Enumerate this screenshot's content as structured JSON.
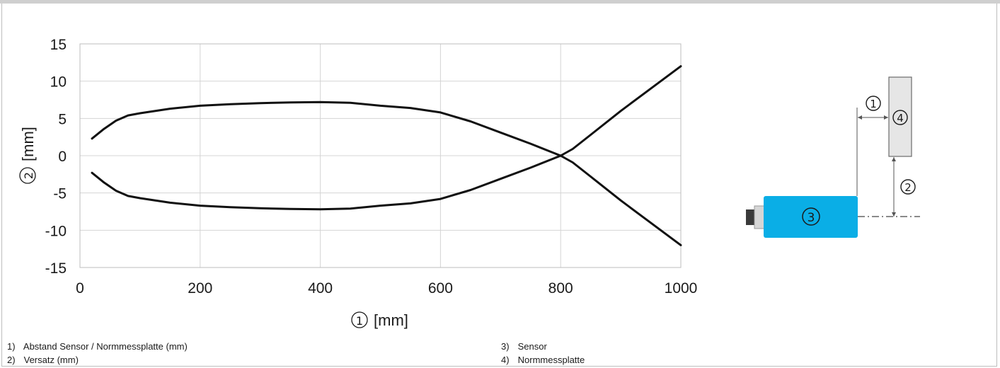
{
  "chart_data": {
    "type": "line",
    "title": "",
    "xlabel_marker": "①",
    "xlabel_unit": "[mm]",
    "ylabel_marker": "②",
    "ylabel_unit": "[mm]",
    "xlim": [
      0,
      1000
    ],
    "ylim": [
      -15,
      15
    ],
    "x_ticks": [
      0,
      200,
      400,
      600,
      800,
      1000
    ],
    "y_ticks": [
      15,
      10,
      5,
      0,
      -5,
      -10,
      -15
    ],
    "grid": true,
    "series": [
      {
        "x": [
          20,
          40,
          60,
          80,
          100,
          150,
          200,
          250,
          300,
          350,
          400,
          450,
          500,
          550,
          600,
          650,
          700,
          750,
          800,
          820,
          850,
          900,
          950,
          1000
        ],
        "y": [
          2.3,
          3.6,
          4.7,
          5.4,
          5.7,
          6.3,
          6.7,
          6.9,
          7.05,
          7.15,
          7.2,
          7.1,
          6.7,
          6.4,
          5.8,
          4.6,
          3.1,
          1.6,
          0,
          -0.9,
          -2.8,
          -6.0,
          -9.0,
          -12.0
        ]
      },
      {
        "x": [
          20,
          40,
          60,
          80,
          100,
          150,
          200,
          250,
          300,
          350,
          400,
          450,
          500,
          550,
          600,
          650,
          700,
          750,
          800,
          820,
          850,
          900,
          950,
          1000
        ],
        "y": [
          -2.3,
          -3.6,
          -4.7,
          -5.4,
          -5.7,
          -6.3,
          -6.7,
          -6.9,
          -7.05,
          -7.15,
          -7.2,
          -7.1,
          -6.7,
          -6.4,
          -5.8,
          -4.6,
          -3.1,
          -1.6,
          0,
          0.9,
          2.8,
          6.0,
          9.0,
          12.0
        ]
      }
    ]
  },
  "diagram": {
    "marker_distance": "①",
    "marker_offset": "②",
    "marker_sensor": "③",
    "marker_plate": "④",
    "sensor_color": "#0aaee6",
    "plate_color": "#e6e6e6"
  },
  "legend": {
    "left": [
      {
        "num": "1)",
        "text": "Abstand Sensor / Normmessplatte (mm)"
      },
      {
        "num": "2)",
        "text": "Versatz (mm)"
      }
    ],
    "right": [
      {
        "num": "3)",
        "text": "Sensor"
      },
      {
        "num": "4)",
        "text": "Normmessplatte"
      }
    ]
  }
}
